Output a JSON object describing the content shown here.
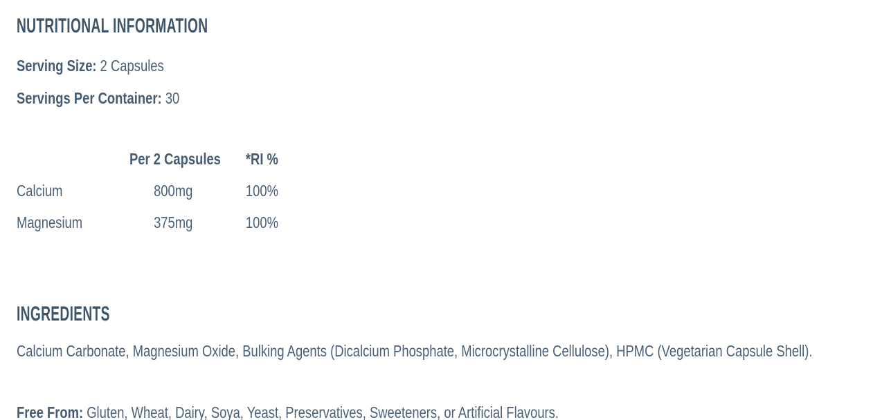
{
  "theme": {
    "background": "#ffffff",
    "heading_color": "#3e5569",
    "text_color": "#4a6078",
    "bold_text_color": "#435c74"
  },
  "nutrition": {
    "title": "NUTRITIONAL INFORMATION",
    "serving_size": {
      "label": "Serving Size:",
      "value": "2 Capsules"
    },
    "servings_per_container": {
      "label": "Servings Per Container:",
      "value": "30"
    },
    "table": {
      "header": {
        "name": "",
        "amount": "Per 2 Capsules",
        "ri": "*RI %"
      },
      "rows": [
        {
          "name": "Calcium",
          "amount": "800mg",
          "ri": "100%"
        },
        {
          "name": "Magnesium",
          "amount": "375mg",
          "ri": "100%"
        }
      ]
    }
  },
  "ingredients": {
    "title": "INGREDIENTS",
    "text": "Calcium Carbonate, Magnesium Oxide, Bulking Agents (Dicalcium Phosphate, Microcrystalline Cellulose), HPMC (Vegetarian Capsule Shell)."
  },
  "free_from": {
    "label": "Free From:",
    "text": "Gluten, Wheat, Dairy, Soya, Yeast, Preservatives, Sweeteners, or Artificial Flavours."
  }
}
